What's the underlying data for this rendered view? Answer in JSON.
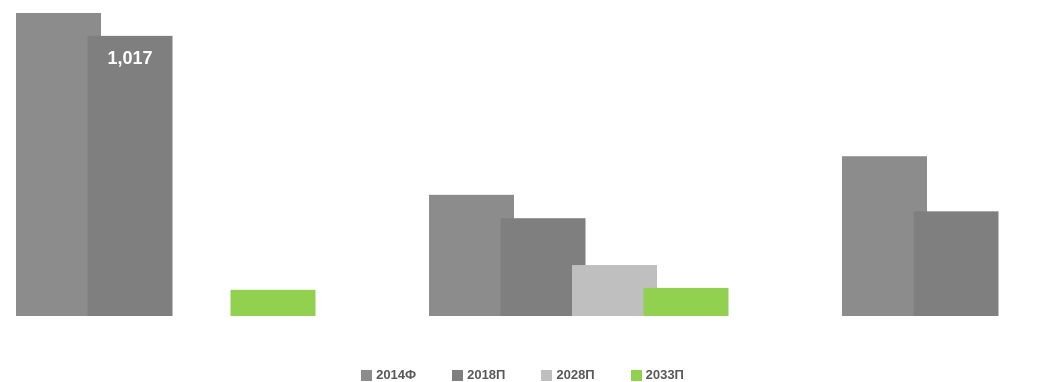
{
  "chart_data": {
    "type": "bar",
    "categories": [
      "",
      "",
      ""
    ],
    "series": [
      {
        "name": "2014Ф",
        "color": "#8c8c8c",
        "values": [
          1100,
          440,
          580
        ]
      },
      {
        "name": "2018П",
        "color": "#7f7f7f",
        "values": [
          1017,
          355,
          380
        ]
      },
      {
        "name": "2028П",
        "color": "#bfbfbf",
        "values": [
          null,
          185,
          null
        ]
      },
      {
        "name": "2033П",
        "color": "#92d050",
        "values": [
          95,
          102,
          12
        ]
      }
    ],
    "data_labels": [
      {
        "series": 1,
        "category": 0,
        "text": "1,017"
      }
    ],
    "title": "",
    "xlabel": "",
    "ylabel": "",
    "ylim": [
      0,
      1100
    ],
    "grid": false,
    "legend_position": "bottom"
  }
}
